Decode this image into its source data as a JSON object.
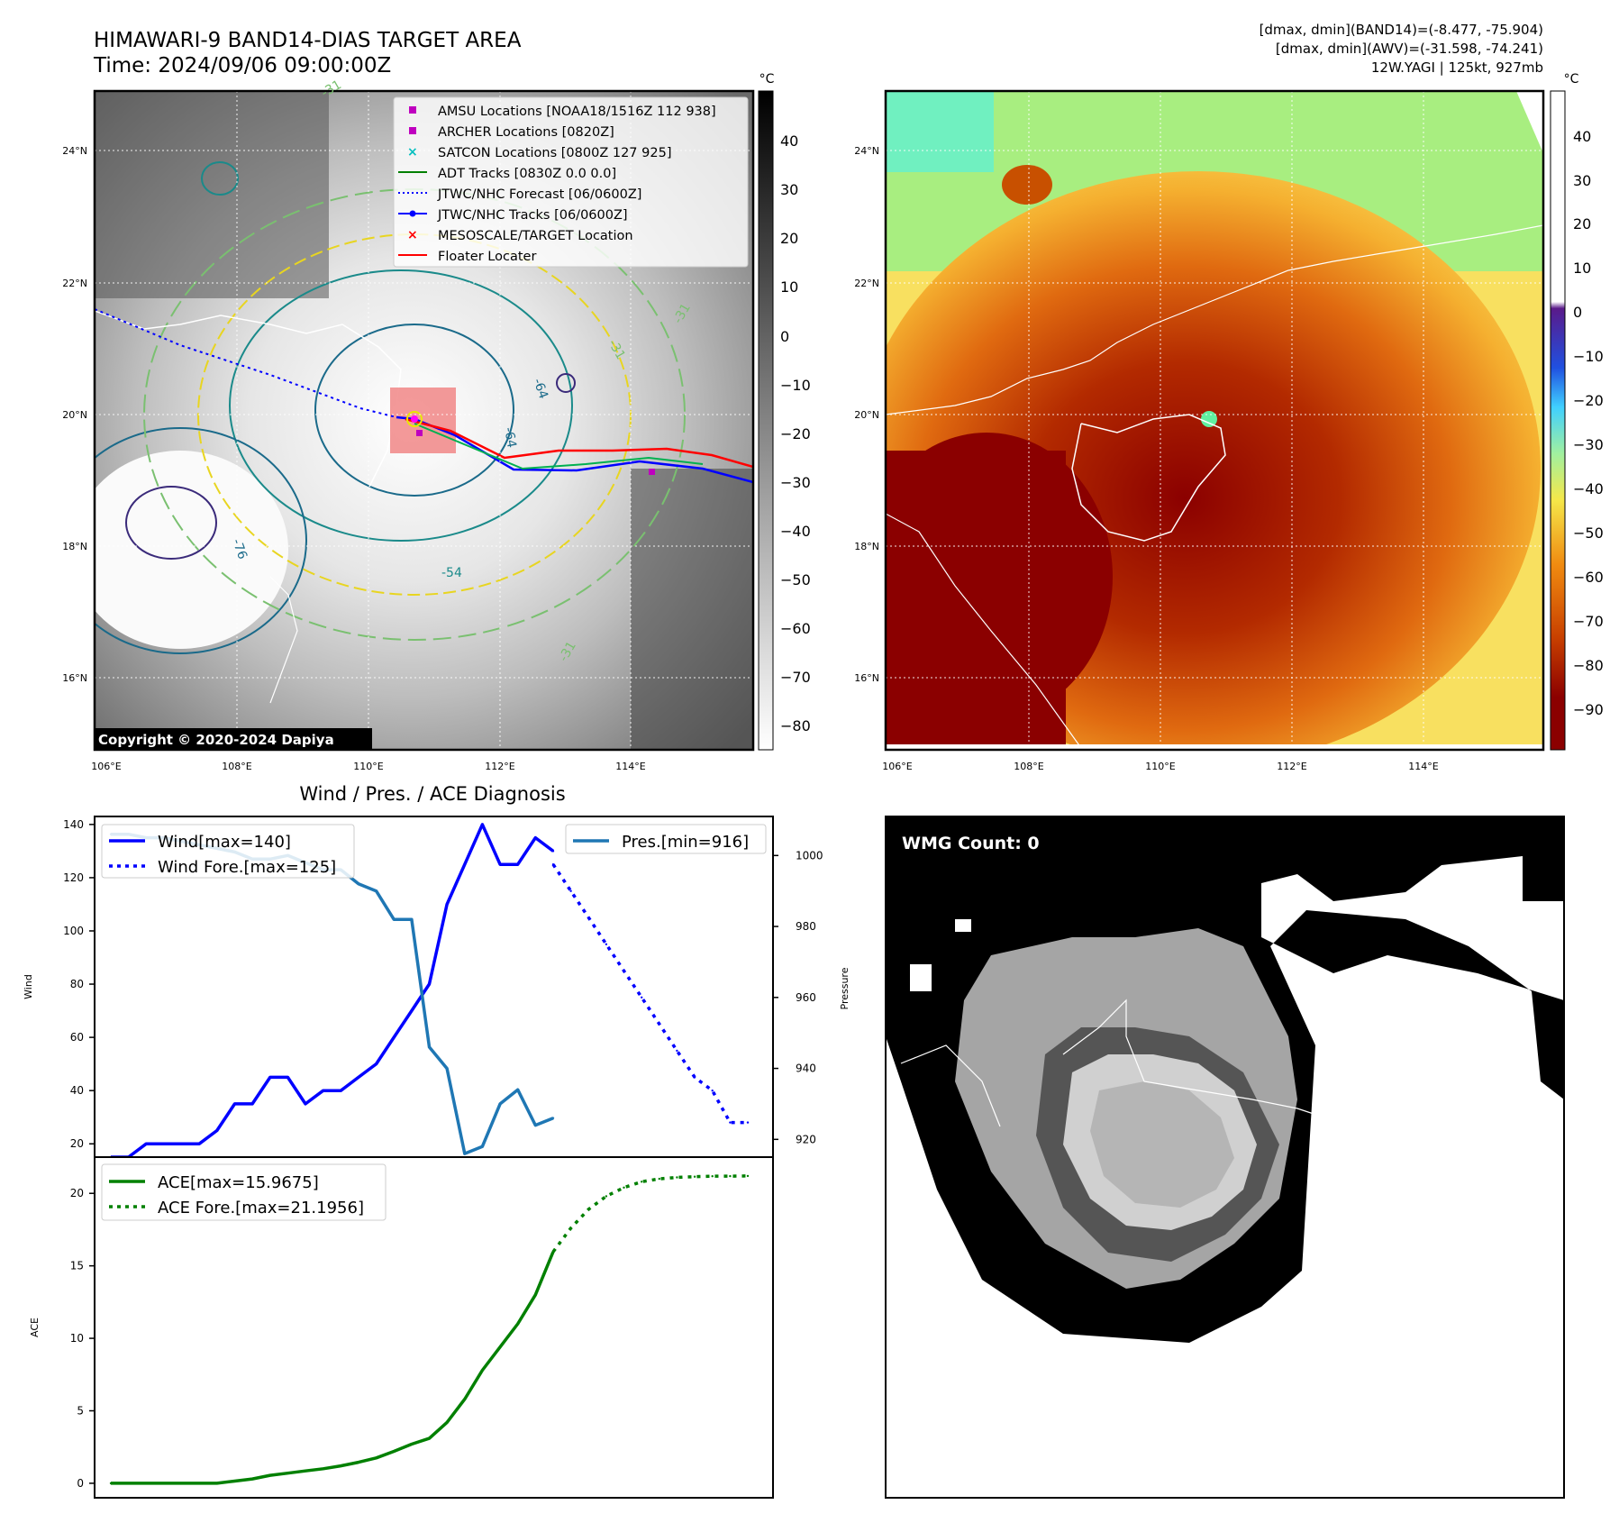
{
  "header": {
    "title": "HIMAWARI-9 BAND14-DIAS TARGET AREA",
    "time": "Time: 2024/09/06 09:00:00Z",
    "info_line1": "[dmax, dmin](BAND14)=(-8.477, -75.904)",
    "info_line2": "[dmax, dmin](AWV)=(-31.598, -74.241)",
    "info_line3": "12W.YAGI | 125kt, 927mb"
  },
  "map_left": {
    "lon_ticks": [
      "106°E",
      "108°E",
      "110°E",
      "112°E",
      "114°E"
    ],
    "lat_ticks": [
      "24°N",
      "22°N",
      "20°N",
      "18°N",
      "16°N"
    ],
    "colorbar_unit": "°C",
    "colorbar_ticks": [
      "40",
      "30",
      "20",
      "10",
      "0",
      "−10",
      "−20",
      "−30",
      "−40",
      "−50",
      "−60",
      "−70",
      "−80"
    ],
    "copyright": "Copyright © 2020-2024 Dapiya",
    "contour_labels": [
      "-64",
      "-64",
      "-54",
      "-76",
      "-31",
      "-31",
      "-31",
      "-31"
    ],
    "legend": [
      {
        "label": "AMSU Locations [NOAA18/1516Z 112 938]",
        "color": "#bf00bf",
        "marker": "square"
      },
      {
        "label": "ARCHER Locations [0820Z]",
        "color": "#bf00bf",
        "marker": "square"
      },
      {
        "label": "SATCON Locations [0800Z 127 925]",
        "color": "#00bfbf",
        "marker": "x"
      },
      {
        "label": "ADT Tracks [0830Z 0.0 0.0]",
        "color": "#008000",
        "marker": "line"
      },
      {
        "label": "JTWC/NHC Forecast [06/0600Z]",
        "color": "#0000ff",
        "marker": "dotted"
      },
      {
        "label": "JTWC/NHC Tracks [06/0600Z]",
        "color": "#0000ff",
        "marker": "line-dot"
      },
      {
        "label": "MESOSCALE/TARGET Location",
        "color": "#ff0000",
        "marker": "x"
      },
      {
        "label": "Floater Locater",
        "color": "#ff0000",
        "marker": "line"
      }
    ]
  },
  "map_right": {
    "lon_ticks": [
      "106°E",
      "108°E",
      "110°E",
      "112°E",
      "114°E"
    ],
    "lat_ticks": [
      "24°N",
      "22°N",
      "20°N",
      "18°N",
      "16°N"
    ],
    "colorbar_unit": "°C",
    "colorbar_ticks": [
      "40",
      "30",
      "20",
      "10",
      "0",
      "−10",
      "−20",
      "−30",
      "−40",
      "−50",
      "−60",
      "−70",
      "−80",
      "−90"
    ]
  },
  "wmg": {
    "label": "WMG Count: 0"
  },
  "chart_data": [
    {
      "type": "line",
      "title": "Wind / Pres. / ACE Diagnosis",
      "ylabel": "Wind",
      "y2label": "Pressure",
      "ylim": [
        15,
        143
      ],
      "y2lim": [
        915,
        1011
      ],
      "yticks": [
        20,
        40,
        60,
        80,
        100,
        120,
        140
      ],
      "y2ticks": [
        920,
        940,
        960,
        980,
        1000
      ],
      "series": [
        {
          "name": "Wind[max=140]",
          "color": "#0000ff",
          "style": "solid",
          "axis": "left",
          "x": [
            0,
            1,
            2,
            3,
            4,
            5,
            6,
            7,
            8,
            9,
            10,
            11,
            12,
            13,
            14,
            15,
            16,
            17,
            18,
            19,
            20,
            21,
            22,
            23,
            24,
            25
          ],
          "values": [
            15,
            15,
            20,
            20,
            20,
            20,
            25,
            35,
            35,
            45,
            45,
            35,
            40,
            40,
            45,
            50,
            60,
            70,
            80,
            110,
            125,
            140,
            125,
            125,
            135,
            130
          ]
        },
        {
          "name": "Wind Fore.[max=125]",
          "color": "#0000ff",
          "style": "dotted",
          "axis": "left",
          "x": [
            25,
            26,
            27,
            28,
            29,
            30,
            31,
            32,
            33,
            34,
            35,
            36
          ],
          "values": [
            125,
            115,
            105,
            95,
            85,
            75,
            65,
            55,
            45,
            40,
            28,
            28
          ]
        },
        {
          "name": "Pres.[min=916]",
          "color": "#1f77b4",
          "style": "solid",
          "axis": "right",
          "x": [
            0,
            1,
            2,
            3,
            4,
            5,
            6,
            7,
            8,
            9,
            10,
            11,
            12,
            13,
            14,
            15,
            16,
            17,
            18,
            19,
            20,
            21,
            22,
            23,
            24,
            25
          ],
          "values": [
            1006,
            1006,
            1005,
            1005,
            1004,
            1003,
            1002,
            1001,
            999,
            999,
            1000,
            998,
            996,
            996,
            992,
            990,
            982,
            982,
            946,
            940,
            916,
            918,
            930,
            934,
            924,
            926
          ]
        }
      ]
    },
    {
      "type": "line",
      "ylabel": "ACE",
      "ylim": [
        -1,
        22.5
      ],
      "yticks": [
        0,
        5,
        10,
        15,
        20
      ],
      "series": [
        {
          "name": "ACE[max=15.9675]",
          "color": "#008000",
          "style": "solid",
          "x": [
            0,
            1,
            2,
            3,
            4,
            5,
            6,
            7,
            8,
            9,
            10,
            11,
            12,
            13,
            14,
            15,
            16,
            17,
            18,
            19,
            20,
            21,
            22,
            23,
            24,
            25
          ],
          "values": [
            0,
            0,
            0,
            0,
            0,
            0,
            0,
            0.15,
            0.3,
            0.55,
            0.7,
            0.85,
            1.0,
            1.2,
            1.45,
            1.75,
            2.2,
            2.7,
            3.1,
            4.2,
            5.8,
            7.8,
            9.4,
            11,
            13,
            15.97
          ]
        },
        {
          "name": "ACE Fore.[max=21.1956]",
          "color": "#008000",
          "style": "dotted",
          "x": [
            25,
            26,
            27,
            28,
            29,
            30,
            31,
            32,
            33,
            34,
            35,
            36
          ],
          "values": [
            15.97,
            17.6,
            18.9,
            19.8,
            20.4,
            20.8,
            21.0,
            21.1,
            21.15,
            21.18,
            21.19,
            21.2
          ]
        }
      ]
    }
  ]
}
